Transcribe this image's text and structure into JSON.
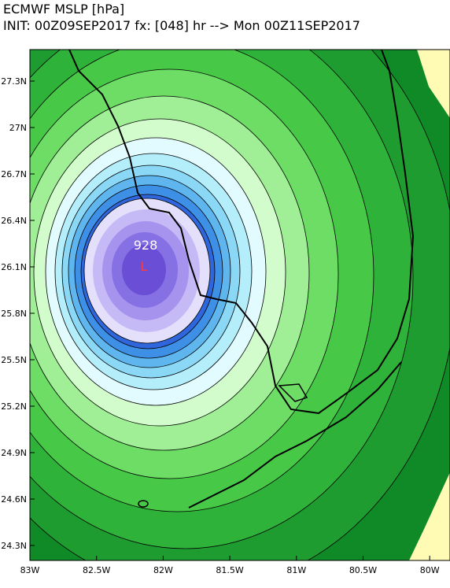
{
  "header": {
    "title": "ECMWF MSLP [hPa]",
    "init": "INIT: 00Z09SEP2017 fx: [048] hr --> Mon 00Z11SEP2017"
  },
  "map": {
    "center_label": "928",
    "low_marker": "L"
  },
  "y_axis": {
    "ticks": [
      "27.3N",
      "27N",
      "26.7N",
      "26.4N",
      "26.1N",
      "25.8N",
      "25.5N",
      "25.2N",
      "24.9N",
      "24.6N",
      "24.3N"
    ]
  },
  "x_axis": {
    "ticks": [
      "83W",
      "82.5W",
      "82W",
      "81.5W",
      "81W",
      "80.5W",
      "80W"
    ]
  }
}
